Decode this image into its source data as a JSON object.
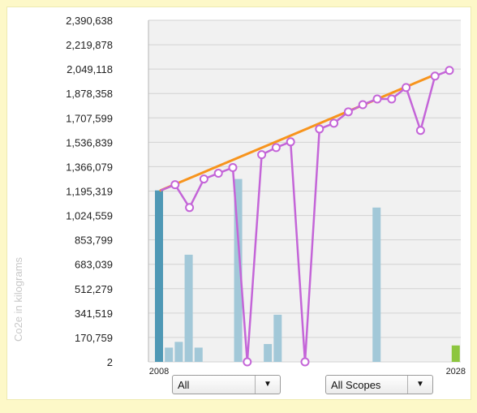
{
  "chart_data": {
    "type": "bar",
    "ylabel": "Co2e in kilograms",
    "y_ticks": [
      "2",
      "170,759",
      "341,519",
      "512,279",
      "683,039",
      "853,799",
      "1,024,559",
      "1,195,319",
      "1,366,079",
      "1,536,839",
      "1,707,599",
      "1,878,358",
      "2,049,118",
      "2,219,878",
      "2,390,638"
    ],
    "x_tick_labels": [
      "2008",
      "2028"
    ],
    "ylim": [
      2,
      2390638
    ],
    "grid": true,
    "series": [
      {
        "values": [
          1200000,
          100000,
          140000,
          750000,
          100000,
          0,
          0,
          0,
          1280000,
          0,
          0,
          125000,
          330000,
          0,
          0,
          0,
          0,
          0,
          0,
          0,
          0,
          0,
          1080000,
          0,
          0,
          0,
          0,
          0,
          0,
          0,
          115000
        ],
        "colors": [
          "#4f98b5",
          "#a2c8d8",
          "#a2c8d8",
          "#a2c8d8",
          "#a2c8d8",
          "#a2c8d8",
          "#a2c8d8",
          "#a2c8d8",
          "#a2c8d8",
          "#a2c8d8",
          "#a2c8d8",
          "#a2c8d8",
          "#a2c8d8",
          "#a2c8d8",
          "#a2c8d8",
          "#a2c8d8",
          "#a2c8d8",
          "#a2c8d8",
          "#a2c8d8",
          "#a2c8d8",
          "#a2c8d8",
          "#a2c8d8",
          "#a2c8d8",
          "#a2c8d8",
          "#a2c8d8",
          "#a2c8d8",
          "#a2c8d8",
          "#a2c8d8",
          "#a2c8d8",
          "#a2c8d8",
          "#8dc63f"
        ]
      },
      {
        "type": "line",
        "color": "#c465d8",
        "values": [
          1200000,
          1240000,
          1080000,
          1280000,
          1320000,
          1360000,
          0,
          1450000,
          1500000,
          1540000,
          0,
          1630000,
          1670000,
          1750000,
          1800000,
          1840000,
          1840000,
          1920000,
          1620000,
          2000000,
          2040000
        ]
      },
      {
        "type": "line",
        "color": "#f7941d",
        "start_value": 1200000,
        "end_value": 2010000
      }
    ]
  },
  "controls": {
    "filter_value": "All",
    "scope_value": "All Scopes",
    "dropdown_glyph": "▼"
  }
}
